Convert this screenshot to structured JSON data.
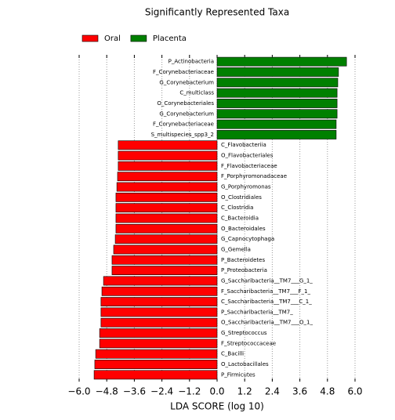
{
  "chart_data": {
    "type": "barh",
    "title": "Significantly Represented Taxa",
    "x_label": "LDA SCORE (log 10)",
    "categories": [
      "P_Actinobacteria",
      "F_Corynebacteriaceae",
      "G_Corynebacterium",
      "C_multiclass",
      "O_Corynebacteriales",
      "G_Corynebacterium",
      "F_Corynebacteriaceae",
      "S_multispecies_spp3_2",
      "C_Flavobacteriia",
      "O_Flavobacteriales",
      "F_Flavobacteriaceae",
      "F_Porphyromonadaceae",
      "G_Porphyromonas",
      "O_Clostridiales",
      "C_Clostridia",
      "C_Bacteroidia",
      "O_Bacteroidales",
      "G_Capnocytophaga",
      "G_Gemella",
      "P_Bacteroidetes",
      "P_Proteobacteria",
      "G_Saccharibacteria__TM7___G_1_",
      "F_Saccharibacteria__TM7___F_1_",
      "C_Saccharibacteria__TM7___C_1_",
      "P_Saccharibacteria__TM7_",
      "O_Saccharibacteria__TM7___O_1_",
      "G_Streptococcus",
      "F_Streptococcaceae",
      "C_Bacilli",
      "O_Lactobacillales",
      "P_Firmicutes"
    ],
    "series": [
      {
        "name": "Oral",
        "color": "#ff0000",
        "values": [
          null,
          null,
          null,
          null,
          null,
          null,
          null,
          null,
          -4.3,
          -4.3,
          -4.3,
          -4.33,
          -4.36,
          -4.4,
          -4.4,
          -4.4,
          -4.4,
          -4.43,
          -4.5,
          -4.57,
          -4.57,
          -4.94,
          -5.01,
          -5.05,
          -5.05,
          -5.05,
          -5.11,
          -5.11,
          -5.28,
          -5.32,
          -5.35
        ]
      },
      {
        "name": "Placenta",
        "color": "#008000",
        "values": [
          5.63,
          5.28,
          5.25,
          5.22,
          5.22,
          5.22,
          5.18,
          5.18,
          null,
          null,
          null,
          null,
          null,
          null,
          null,
          null,
          null,
          null,
          null,
          null,
          null,
          null,
          null,
          null,
          null,
          null,
          null,
          null,
          null,
          null,
          null
        ]
      }
    ],
    "xlim": [
      -6.0,
      6.0
    ],
    "xticks": [
      {
        "value": -6.0,
        "label": "−6.0"
      },
      {
        "value": -4.8,
        "label": "−4.8"
      },
      {
        "value": -3.6,
        "label": "−3.6"
      },
      {
        "value": -2.4,
        "label": "−2.4"
      },
      {
        "value": -1.2,
        "label": "−1.2"
      },
      {
        "value": 0,
        "label": "0.0"
      },
      {
        "value": 1.2,
        "label": "1.2"
      },
      {
        "value": 2.4,
        "label": "2.4"
      },
      {
        "value": 3.6,
        "label": "3.6"
      },
      {
        "value": 4.8,
        "label": "4.8"
      },
      {
        "value": 6.0,
        "label": "6.0"
      }
    ],
    "grid": true,
    "legend": "top-left"
  }
}
